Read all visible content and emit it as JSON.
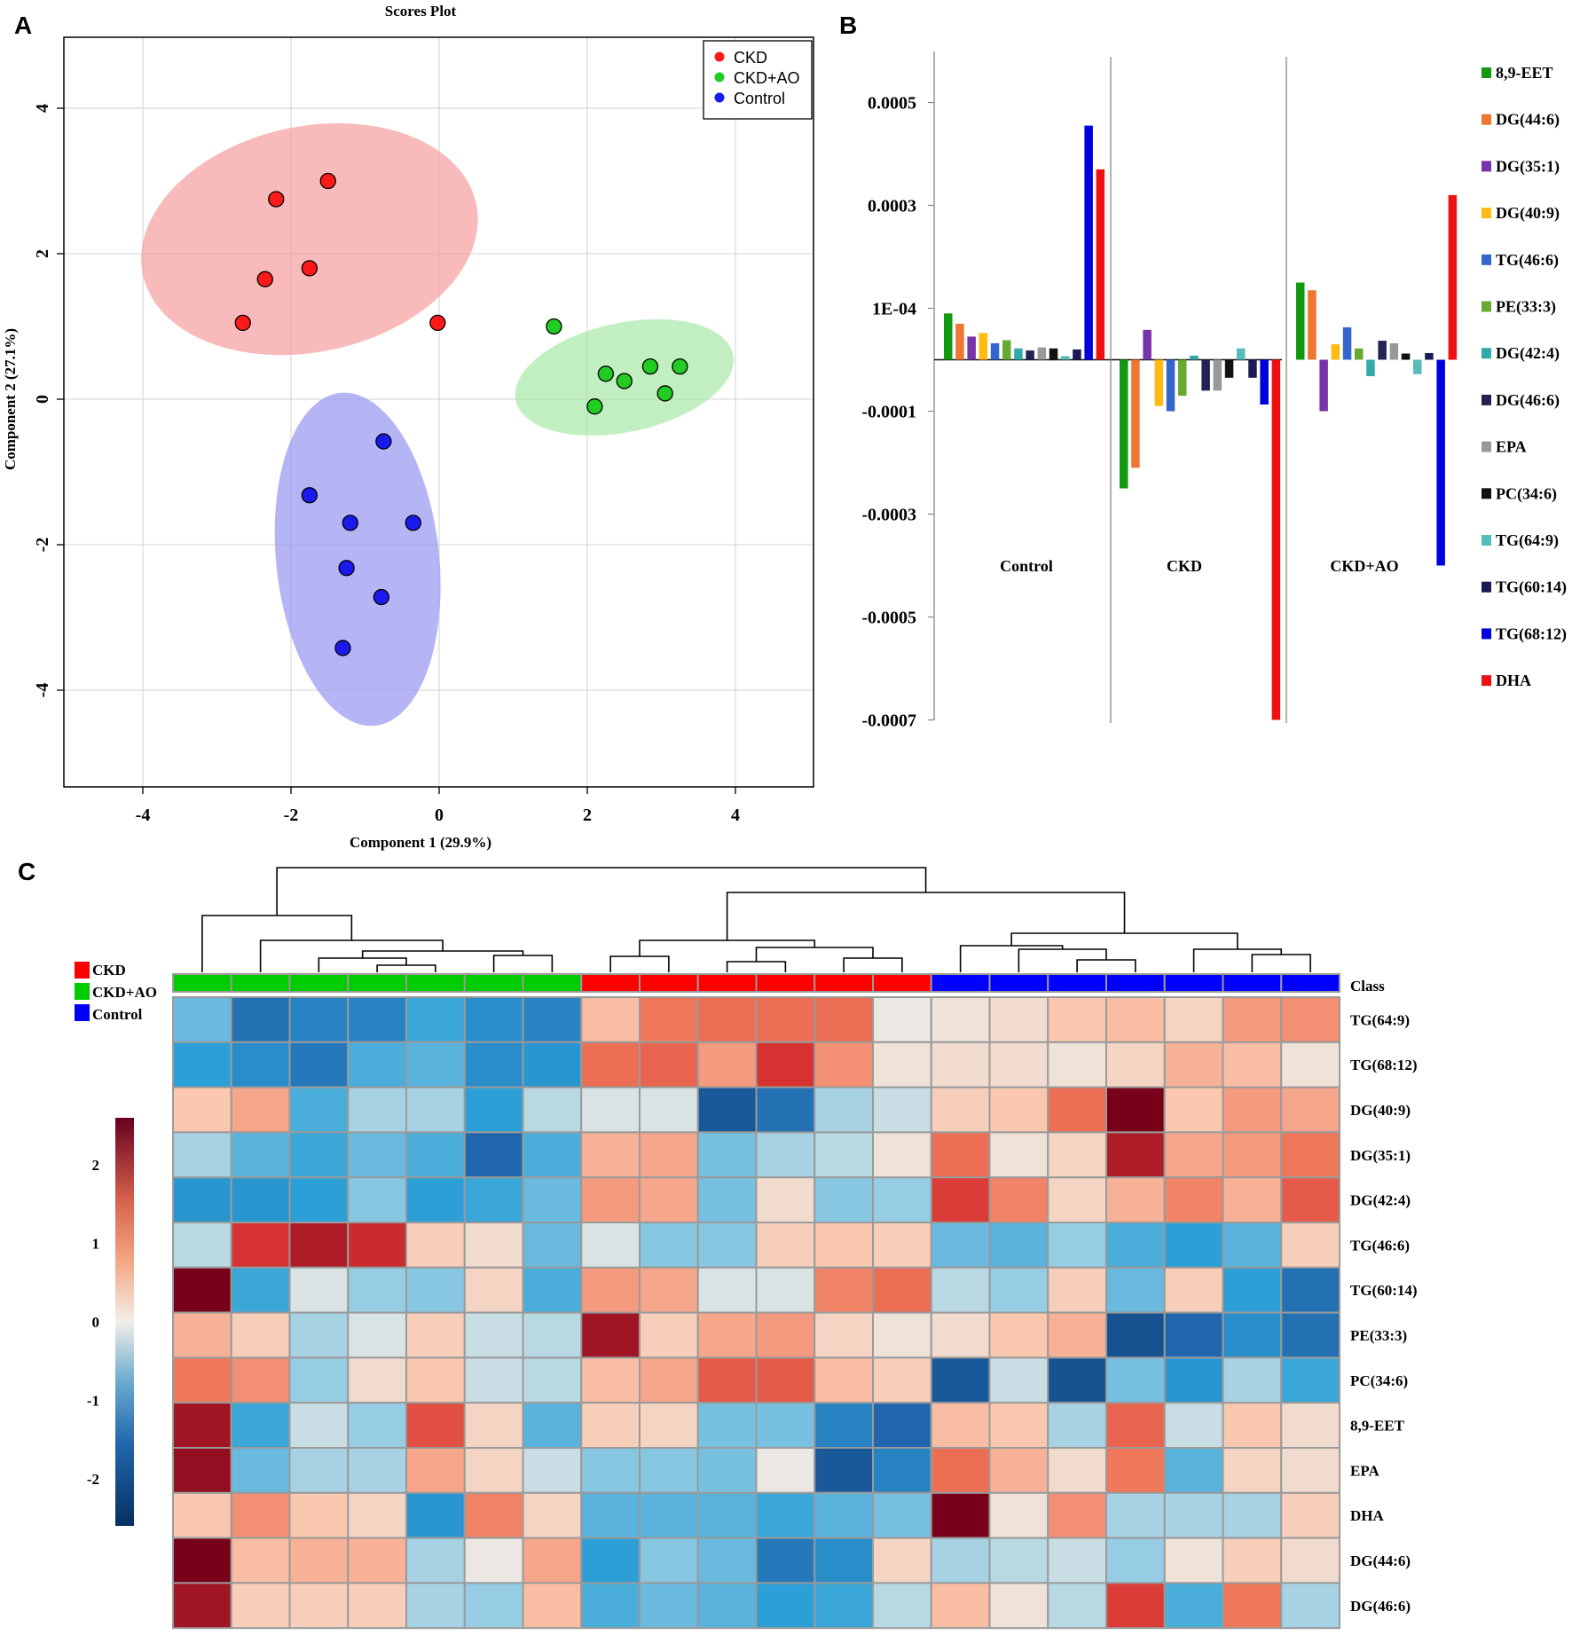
{
  "panel_labels": [
    "A",
    "B",
    "C"
  ],
  "chart_data": [
    {
      "type": "scatter",
      "panel": "A",
      "title": "Scores Plot",
      "xlabel": "Component 1 (29.9%)",
      "ylabel": "Component 2 (27.1%)",
      "xlim": [
        -5.1,
        5.1
      ],
      "ylim": [
        -5.3,
        5.0
      ],
      "xticks": [
        -4,
        -2,
        0,
        2,
        4
      ],
      "yticks": [
        -4,
        -2,
        0,
        2,
        4
      ],
      "grid": true,
      "legend_position": "top-right",
      "series": [
        {
          "name": "CKD",
          "color": "#ff1a1a",
          "fill": "#f6a3a3",
          "ellipse": {
            "cx": -1.75,
            "cy": 2.2,
            "rx": 2.3,
            "ry": 1.55,
            "angle_deg": -12
          },
          "points": [
            [
              -2.2,
              2.75
            ],
            [
              -1.5,
              3.0
            ],
            [
              -1.75,
              1.8
            ],
            [
              -2.35,
              1.65
            ],
            [
              -2.65,
              1.05
            ],
            [
              -0.02,
              1.05
            ]
          ]
        },
        {
          "name": "CKD+AO",
          "color": "#22cc22",
          "fill": "#aeeaae",
          "ellipse": {
            "cx": 2.5,
            "cy": 0.3,
            "rx": 1.5,
            "ry": 0.75,
            "angle_deg": -12
          },
          "points": [
            [
              1.55,
              1.0
            ],
            [
              2.25,
              0.35
            ],
            [
              2.5,
              0.25
            ],
            [
              2.85,
              0.45
            ],
            [
              3.25,
              0.45
            ],
            [
              3.05,
              0.08
            ],
            [
              2.1,
              -0.1
            ]
          ]
        },
        {
          "name": "Control",
          "color": "#1a1aee",
          "fill": "#9c9cf3",
          "ellipse": {
            "cx": -1.1,
            "cy": -2.2,
            "rx": 1.1,
            "ry": 2.3,
            "angle_deg": -6
          },
          "points": [
            [
              -0.75,
              -0.58
            ],
            [
              -1.75,
              -1.32
            ],
            [
              -1.2,
              -1.7
            ],
            [
              -0.35,
              -1.7
            ],
            [
              -1.25,
              -2.32
            ],
            [
              -0.78,
              -2.72
            ],
            [
              -1.3,
              -3.42
            ]
          ]
        }
      ]
    },
    {
      "type": "bar",
      "panel": "B",
      "categories": [
        "Control",
        "CKD",
        "CKD+AO"
      ],
      "yticks": [
        0.0005,
        0.0003,
        0.0001,
        -0.0001,
        -0.0003,
        -0.0005,
        -0.0007
      ],
      "ytick_labels": [
        "0.0005",
        "0.0003",
        "1E-04",
        "-0.0001",
        "-0.0003",
        "-0.0005",
        "-0.0007"
      ],
      "ylim": [
        -0.0007,
        0.0006
      ],
      "legend_position": "right",
      "series": [
        {
          "name": "8,9-EET",
          "color": "#119911",
          "values": [
            9e-05,
            -0.00025,
            0.00015
          ]
        },
        {
          "name": "DG(44:6)",
          "color": "#ee7733",
          "values": [
            7e-05,
            -0.00021,
            0.000135
          ]
        },
        {
          "name": "DG(35:1)",
          "color": "#7733aa",
          "values": [
            4.5e-05,
            5.8e-05,
            -0.0001
          ]
        },
        {
          "name": "DG(40:9)",
          "color": "#ffbb11",
          "values": [
            5.2e-05,
            -9e-05,
            3e-05
          ]
        },
        {
          "name": "TG(46:6)",
          "color": "#3366cc",
          "values": [
            3.2e-05,
            -0.0001,
            6.3e-05
          ]
        },
        {
          "name": "PE(33:3)",
          "color": "#66aa33",
          "values": [
            3.8e-05,
            -7e-05,
            2.2e-05
          ]
        },
        {
          "name": "DG(42:4)",
          "color": "#33aaaa",
          "values": [
            2.2e-05,
            8e-06,
            -3.2e-05
          ]
        },
        {
          "name": "DG(46:6)",
          "color": "#222255",
          "values": [
            1.8e-05,
            -6e-05,
            3.7e-05
          ]
        },
        {
          "name": "EPA",
          "color": "#999999",
          "values": [
            2.4e-05,
            -6e-05,
            3.2e-05
          ]
        },
        {
          "name": "PC(34:6)",
          "color": "#111111",
          "values": [
            2.2e-05,
            -3.5e-05,
            1.2e-05
          ]
        },
        {
          "name": "TG(64:9)",
          "color": "#55bbbb",
          "values": [
            7e-06,
            2.2e-05,
            -2.8e-05
          ]
        },
        {
          "name": "TG(60:14)",
          "color": "#1a1a55",
          "values": [
            2e-05,
            -3.5e-05,
            1.3e-05
          ]
        },
        {
          "name": "TG(68:12)",
          "color": "#0000dd",
          "values": [
            0.000455,
            -8.7e-05,
            -0.0004
          ]
        },
        {
          "name": "DHA",
          "color": "#ee1111",
          "values": [
            0.00037,
            -0.0007,
            0.00032
          ]
        }
      ]
    },
    {
      "type": "heatmap",
      "panel": "C",
      "row_labels": [
        "TG(64:9)",
        "TG(68:12)",
        "DG(40:9)",
        "DG(35:1)",
        "DG(42:4)",
        "TG(46:6)",
        "TG(60:14)",
        "PE(33:3)",
        "PC(34:6)",
        "8,9-EET",
        "EPA",
        "DHA",
        "DG(44:6)",
        "DG(46:6)"
      ],
      "class_label": "Class",
      "column_classes": [
        "CKD+AO",
        "CKD+AO",
        "CKD+AO",
        "CKD+AO",
        "CKD+AO",
        "CKD+AO",
        "CKD+AO",
        "CKD",
        "CKD",
        "CKD",
        "CKD",
        "CKD",
        "CKD",
        "Control",
        "Control",
        "Control",
        "Control",
        "Control",
        "Control",
        "Control"
      ],
      "class_legend": [
        {
          "name": "CKD",
          "color": "#ff0000"
        },
        {
          "name": "CKD+AO",
          "color": "#00cc00"
        },
        {
          "name": "Control",
          "color": "#0000ff"
        }
      ],
      "colorbar_ticks": [
        2,
        1,
        0,
        -1,
        -2
      ],
      "colorbar_range": [
        -2.6,
        2.6
      ],
      "values": [
        [
          -0.8,
          -1.7,
          -1.5,
          -1.5,
          -1.1,
          -1.4,
          -1.5,
          0.6,
          1.2,
          1.3,
          1.3,
          1.3,
          0.0,
          0.1,
          0.2,
          0.5,
          0.6,
          0.3,
          0.9,
          1.0
        ],
        [
          -1.2,
          -1.4,
          -1.6,
          -1.0,
          -0.9,
          -1.4,
          -1.3,
          1.3,
          1.4,
          0.9,
          1.9,
          1.0,
          0.1,
          0.2,
          0.2,
          0.1,
          0.3,
          0.7,
          0.6,
          0.1
        ],
        [
          0.5,
          0.8,
          -1.0,
          -0.4,
          -0.4,
          -1.2,
          -0.3,
          -0.1,
          -0.1,
          -2.0,
          -1.7,
          -0.4,
          -0.2,
          0.4,
          0.5,
          1.3,
          2.6,
          0.5,
          0.9,
          0.8
        ],
        [
          -0.4,
          -0.9,
          -1.1,
          -0.8,
          -1.0,
          -1.8,
          -1.0,
          0.7,
          0.8,
          -0.7,
          -0.4,
          -0.3,
          0.1,
          1.3,
          0.1,
          0.3,
          2.2,
          0.8,
          0.9,
          1.2
        ],
        [
          -1.3,
          -1.3,
          -1.2,
          -0.6,
          -1.2,
          -1.1,
          -0.8,
          0.9,
          0.8,
          -0.7,
          0.2,
          -0.6,
          -0.5,
          1.8,
          1.1,
          0.3,
          0.7,
          1.1,
          0.7,
          1.5
        ],
        [
          -0.3,
          1.9,
          2.2,
          2.0,
          0.4,
          0.2,
          -0.8,
          -0.1,
          -0.6,
          -0.6,
          0.4,
          0.5,
          0.4,
          -0.8,
          -0.9,
          -0.5,
          -1.0,
          -1.2,
          -0.9,
          0.4
        ],
        [
          2.6,
          -1.1,
          -0.1,
          -0.5,
          -0.6,
          0.3,
          -1.0,
          0.9,
          0.8,
          -0.1,
          -0.1,
          1.1,
          1.3,
          -0.3,
          -0.5,
          0.4,
          -0.8,
          0.4,
          -1.2,
          -1.7
        ],
        [
          0.7,
          0.4,
          -0.4,
          -0.1,
          0.4,
          -0.2,
          -0.3,
          2.3,
          0.4,
          0.8,
          0.9,
          0.3,
          0.1,
          0.2,
          0.5,
          0.7,
          -2.1,
          -1.8,
          -1.4,
          -1.7
        ],
        [
          1.2,
          1.0,
          -0.5,
          0.2,
          0.5,
          -0.2,
          -0.3,
          0.6,
          0.8,
          1.5,
          1.5,
          0.6,
          0.4,
          -2.0,
          -0.2,
          -2.1,
          -0.7,
          -1.3,
          -0.4,
          -1.1
        ],
        [
          2.3,
          -1.1,
          -0.2,
          -0.5,
          1.6,
          0.3,
          -0.9,
          0.4,
          0.3,
          -0.7,
          -0.7,
          -1.5,
          -1.8,
          0.6,
          0.5,
          -0.4,
          1.4,
          -0.2,
          0.5,
          0.2
        ],
        [
          2.4,
          -0.8,
          -0.4,
          -0.4,
          0.8,
          0.3,
          -0.2,
          -0.6,
          -0.6,
          -0.7,
          0.0,
          -2.0,
          -1.5,
          1.3,
          0.7,
          0.2,
          1.2,
          -0.9,
          0.3,
          0.2
        ],
        [
          0.5,
          1.0,
          0.5,
          0.3,
          -1.3,
          1.1,
          0.3,
          -0.9,
          -0.9,
          -0.9,
          -1.1,
          -0.9,
          -0.7,
          2.6,
          0.1,
          1.0,
          -0.4,
          -0.4,
          -0.4,
          0.4
        ],
        [
          2.7,
          0.6,
          0.7,
          0.7,
          -0.4,
          0.0,
          0.8,
          -1.2,
          -0.6,
          -0.8,
          -1.6,
          -1.4,
          0.3,
          -0.4,
          -0.3,
          -0.2,
          -0.5,
          0.1,
          0.4,
          0.2
        ],
        [
          2.3,
          0.4,
          0.4,
          0.4,
          -0.4,
          -0.5,
          0.6,
          -1.0,
          -0.8,
          -0.9,
          -1.2,
          -1.1,
          -0.3,
          0.6,
          0.1,
          -0.3,
          1.8,
          -1.0,
          1.2,
          -0.4
        ]
      ]
    }
  ]
}
